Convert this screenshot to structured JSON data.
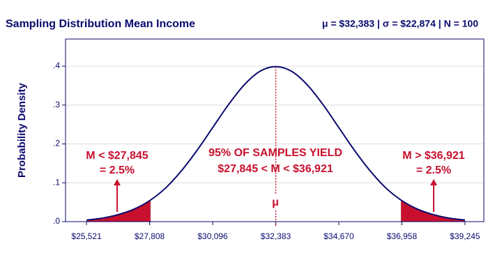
{
  "chart_data": {
    "type": "line",
    "title": "Sampling Distribution Mean Income",
    "subtitle": "μ = $32,383 | σ = $22,874 | N = 100",
    "y_label": "Probability Density",
    "x": [
      25521,
      26093,
      26665,
      27236,
      27808,
      28380,
      28952,
      29524,
      30096,
      30668,
      31239,
      31811,
      32383,
      32955,
      33527,
      34099,
      34670,
      35242,
      35814,
      36386,
      36958,
      37530,
      38101,
      38673,
      39245
    ],
    "values": [
      0.004,
      0.009,
      0.018,
      0.032,
      0.054,
      0.086,
      0.13,
      0.183,
      0.242,
      0.301,
      0.352,
      0.387,
      0.399,
      0.387,
      0.352,
      0.301,
      0.242,
      0.183,
      0.13,
      0.086,
      0.054,
      0.032,
      0.018,
      0.009,
      0.004
    ],
    "color": "#0a0a6e",
    "shade_color": "#c8102e",
    "lower_cutoff": 27845,
    "upper_cutoff": 36921,
    "mean": 32383,
    "xlim": [
      24760,
      39930
    ],
    "ylim": [
      0,
      0.47
    ],
    "xticks": [
      {
        "value": 25521,
        "label": "$25,521"
      },
      {
        "value": 27808,
        "label": "$27,808"
      },
      {
        "value": 30096,
        "label": "$30,096"
      },
      {
        "value": 32383,
        "label": "$32,383"
      },
      {
        "value": 34670,
        "label": "$34,670"
      },
      {
        "value": 36958,
        "label": "$36,958"
      },
      {
        "value": 39245,
        "label": "$39,245"
      }
    ],
    "yticks": [
      {
        "value": 0,
        "label": ".0"
      },
      {
        "value": 0.1,
        "label": ".1"
      },
      {
        "value": 0.2,
        "label": ".2"
      },
      {
        "value": 0.3,
        "label": ".3"
      },
      {
        "value": 0.4,
        "label": ".4"
      }
    ],
    "grid": true,
    "annotations": [
      "M < $27,845",
      "= 2.5%",
      "95% OF SAMPLES YIELD",
      "$27,845 < M < $36,921",
      "M > $36,921",
      "= 2.5%",
      "μ"
    ]
  }
}
